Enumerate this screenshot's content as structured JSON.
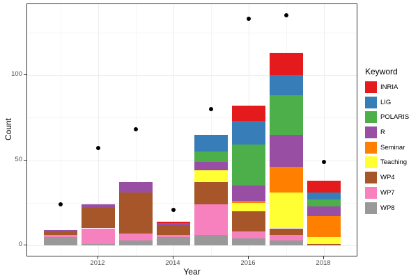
{
  "chart_data": {
    "type": "bar",
    "stacked": true,
    "title": "",
    "xlabel": "Year",
    "ylabel": "Count",
    "categories": [
      "2011",
      "2012",
      "2013",
      "2014",
      "2015",
      "2016",
      "2017",
      "2018"
    ],
    "x_major_ticks": [
      "2012",
      "2014",
      "2016",
      "2018"
    ],
    "y_major_ticks": [
      0,
      50,
      100
    ],
    "y_minor_ticks": [
      25,
      75,
      125
    ],
    "ylim": [
      -7,
      142
    ],
    "grid": true,
    "legend_title": "Keyword",
    "legend_position": "right",
    "stack_order_bottom_to_top": [
      "WP8",
      "WP7",
      "WP4",
      "Teaching",
      "Seminar",
      "R",
      "POLARIS",
      "LIG",
      "INRIA"
    ],
    "series": [
      {
        "name": "INRIA",
        "color": "#E41A1C",
        "values": [
          0,
          0,
          0,
          1,
          0,
          9,
          13,
          7
        ]
      },
      {
        "name": "LIG",
        "color": "#377EB8",
        "values": [
          0,
          0,
          0,
          0,
          10,
          14,
          12,
          4
        ]
      },
      {
        "name": "POLARIS",
        "color": "#4DAF4A",
        "values": [
          0,
          0,
          0,
          0,
          6,
          24,
          23,
          4
        ]
      },
      {
        "name": "R",
        "color": "#984EA3",
        "values": [
          1,
          2,
          6,
          1,
          5,
          9,
          19,
          6
        ]
      },
      {
        "name": "Seminar",
        "color": "#FF7F00",
        "values": [
          0,
          0,
          0,
          0,
          0,
          1,
          15,
          12
        ]
      },
      {
        "name": "Teaching",
        "color": "#FFFF33",
        "values": [
          0,
          0,
          0,
          0,
          7,
          5,
          21,
          4
        ]
      },
      {
        "name": "WP4",
        "color": "#A65628",
        "values": [
          2,
          12,
          24,
          6,
          13,
          12,
          4,
          1
        ]
      },
      {
        "name": "WP7",
        "color": "#F781BF",
        "values": [
          1,
          9,
          4,
          1,
          18,
          4,
          3,
          0
        ]
      },
      {
        "name": "WP8",
        "color": "#999999",
        "values": [
          5,
          1,
          3,
          5,
          6,
          4,
          3,
          0
        ]
      }
    ],
    "bar_totals": [
      9,
      24,
      37,
      14,
      65,
      82,
      113,
      38
    ],
    "points": {
      "marker": "black-dot",
      "color": "#000000",
      "values": [
        24,
        57,
        68,
        21,
        80,
        133,
        135,
        49
      ]
    }
  },
  "axes": {
    "x_title": "Year",
    "y_title": "Count",
    "y_tick_labels": [
      "0",
      "50",
      "100"
    ],
    "x_tick_labels": [
      "2012",
      "2014",
      "2016",
      "2018"
    ]
  },
  "legend": {
    "title": "Keyword",
    "items": [
      {
        "label": "INRIA",
        "color": "#E41A1C"
      },
      {
        "label": "LIG",
        "color": "#377EB8"
      },
      {
        "label": "POLARIS",
        "color": "#4DAF4A"
      },
      {
        "label": "R",
        "color": "#984EA3"
      },
      {
        "label": "Seminar",
        "color": "#FF7F00"
      },
      {
        "label": "Teaching",
        "color": "#FFFF33"
      },
      {
        "label": "WP4",
        "color": "#A65628"
      },
      {
        "label": "WP7",
        "color": "#F781BF"
      },
      {
        "label": "WP8",
        "color": "#999999"
      }
    ]
  }
}
